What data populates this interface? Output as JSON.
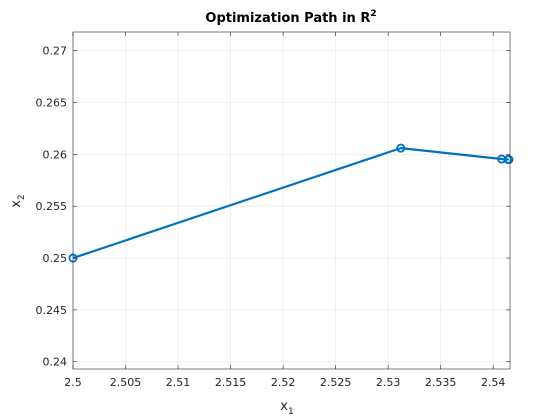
{
  "chart_data": {
    "type": "line",
    "title": "Optimization Path in R",
    "title_superscript": "2",
    "xlabel": "x",
    "xlabel_subscript": "1",
    "ylabel": "x",
    "ylabel_subscript": "2",
    "xlim": [
      2.5,
      2.5416
    ],
    "ylim": [
      0.2393,
      0.2718
    ],
    "x_ticks": [
      2.5,
      2.505,
      2.51,
      2.515,
      2.52,
      2.525,
      2.53,
      2.535,
      2.54
    ],
    "x_tick_labels": [
      "2.5",
      "2.505",
      "2.51",
      "2.515",
      "2.52",
      "2.525",
      "2.53",
      "2.535",
      "2.54"
    ],
    "y_ticks": [
      0.24,
      0.245,
      0.25,
      0.255,
      0.26,
      0.265,
      0.27
    ],
    "y_tick_labels": [
      "0.24",
      "0.245",
      "0.25",
      "0.255",
      "0.26",
      "0.265",
      "0.27"
    ],
    "grid": true,
    "series": [
      {
        "color": "#0072BD",
        "marker": "circle",
        "x": [
          2.5,
          2.5312,
          2.5408,
          2.5414,
          2.5415
        ],
        "y": [
          0.25,
          0.2606,
          0.25955,
          0.2595,
          0.2595
        ]
      }
    ]
  }
}
